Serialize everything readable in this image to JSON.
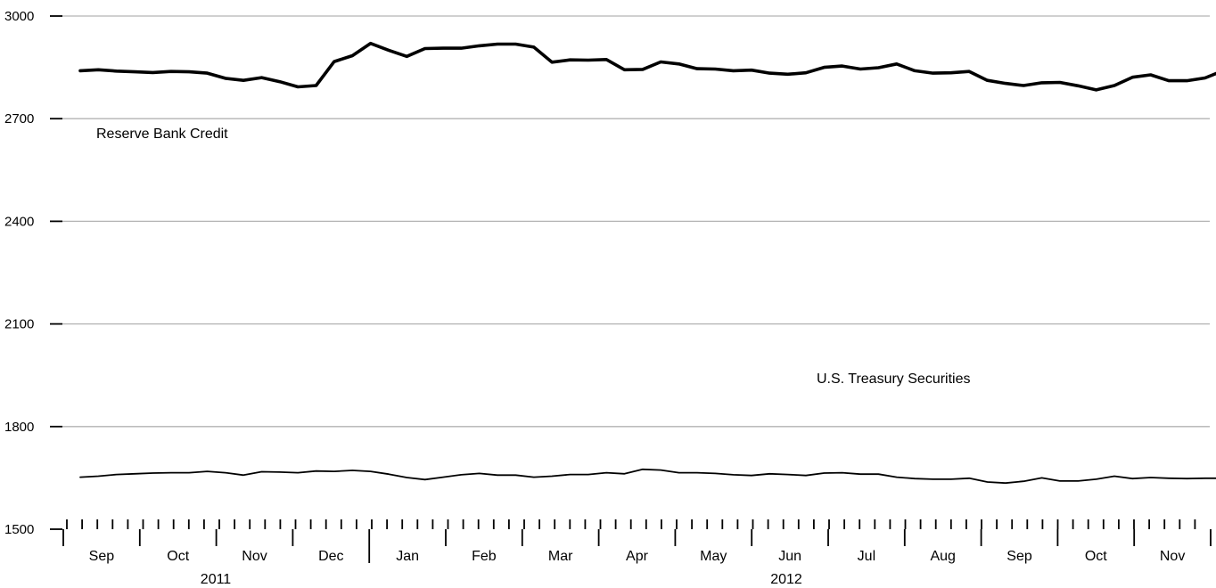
{
  "chart_data": {
    "type": "line",
    "title": "",
    "xlabel": "",
    "ylabel": "",
    "ylim": [
      1500,
      3000
    ],
    "y_ticks": [
      "1500",
      "1800",
      "2100",
      "2400",
      "2700",
      "3000"
    ],
    "grid": true,
    "months": [
      "Sep",
      "Oct",
      "Nov",
      "Dec",
      "Jan",
      "Feb",
      "Mar",
      "Apr",
      "May",
      "Jun",
      "Jul",
      "Aug",
      "Sep",
      "Oct",
      "Nov"
    ],
    "years": [
      "2011",
      "2012"
    ],
    "series": [
      {
        "name": "Reserve Bank Credit",
        "line_weight": "bold",
        "values": [
          2840,
          2843,
          2839,
          2837,
          2835,
          2838,
          2837,
          2833,
          2818,
          2812,
          2820,
          2808,
          2793,
          2797,
          2867,
          2884,
          2920,
          2900,
          2882,
          2905,
          2906,
          2906,
          2913,
          2918,
          2918,
          2909,
          2865,
          2872,
          2871,
          2873,
          2843,
          2844,
          2866,
          2860,
          2846,
          2845,
          2840,
          2842,
          2833,
          2830,
          2834,
          2850,
          2854,
          2845,
          2849,
          2860,
          2840,
          2833,
          2834,
          2838,
          2812,
          2803,
          2797,
          2805,
          2806,
          2796,
          2784,
          2797,
          2821,
          2828,
          2811,
          2811,
          2819,
          2840
        ]
      },
      {
        "name": "U.S. Treasury Securities",
        "line_weight": "thin",
        "values": [
          1652,
          1655,
          1660,
          1662,
          1664,
          1665,
          1665,
          1669,
          1665,
          1658,
          1668,
          1667,
          1665,
          1670,
          1669,
          1672,
          1669,
          1661,
          1651,
          1645,
          1652,
          1659,
          1663,
          1658,
          1658,
          1652,
          1655,
          1660,
          1660,
          1665,
          1662,
          1675,
          1673,
          1665,
          1665,
          1663,
          1659,
          1657,
          1662,
          1660,
          1657,
          1664,
          1665,
          1661,
          1661,
          1652,
          1648,
          1646,
          1646,
          1649,
          1638,
          1635,
          1640,
          1650,
          1641,
          1641,
          1646,
          1655,
          1648,
          1651,
          1649,
          1648,
          1649,
          1649
        ]
      }
    ]
  }
}
